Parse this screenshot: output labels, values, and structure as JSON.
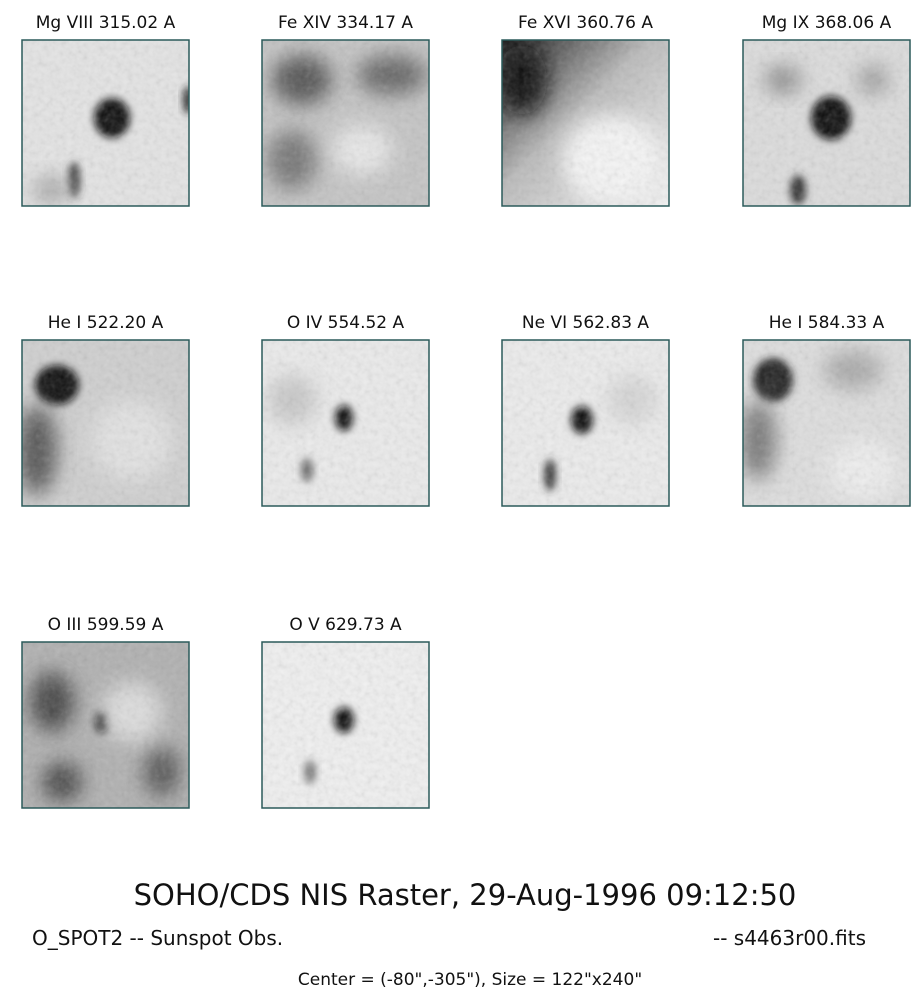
{
  "panels": [
    {
      "title": "Mg VIII 315.02 A"
    },
    {
      "title": "Fe XIV 334.17 A"
    },
    {
      "title": "Fe XVI 360.76 A"
    },
    {
      "title": "Mg IX 368.06 A"
    },
    {
      "title": "He I 522.20 A"
    },
    {
      "title": "O IV 554.52 A"
    },
    {
      "title": "Ne VI 562.83 A"
    },
    {
      "title": "He I 584.33 A"
    },
    {
      "title": "O III 599.59 A"
    },
    {
      "title": "O V 629.73 A"
    }
  ],
  "footer": {
    "title": "SOHO/CDS NIS Raster, 29-Aug-1996 09:12:50",
    "study": "O_SPOT2 -- Sunspot Obs.",
    "file": "-- s4463r00.fits",
    "pointing": "Center = (-80\",-305\"),  Size = 122\"x240\""
  }
}
